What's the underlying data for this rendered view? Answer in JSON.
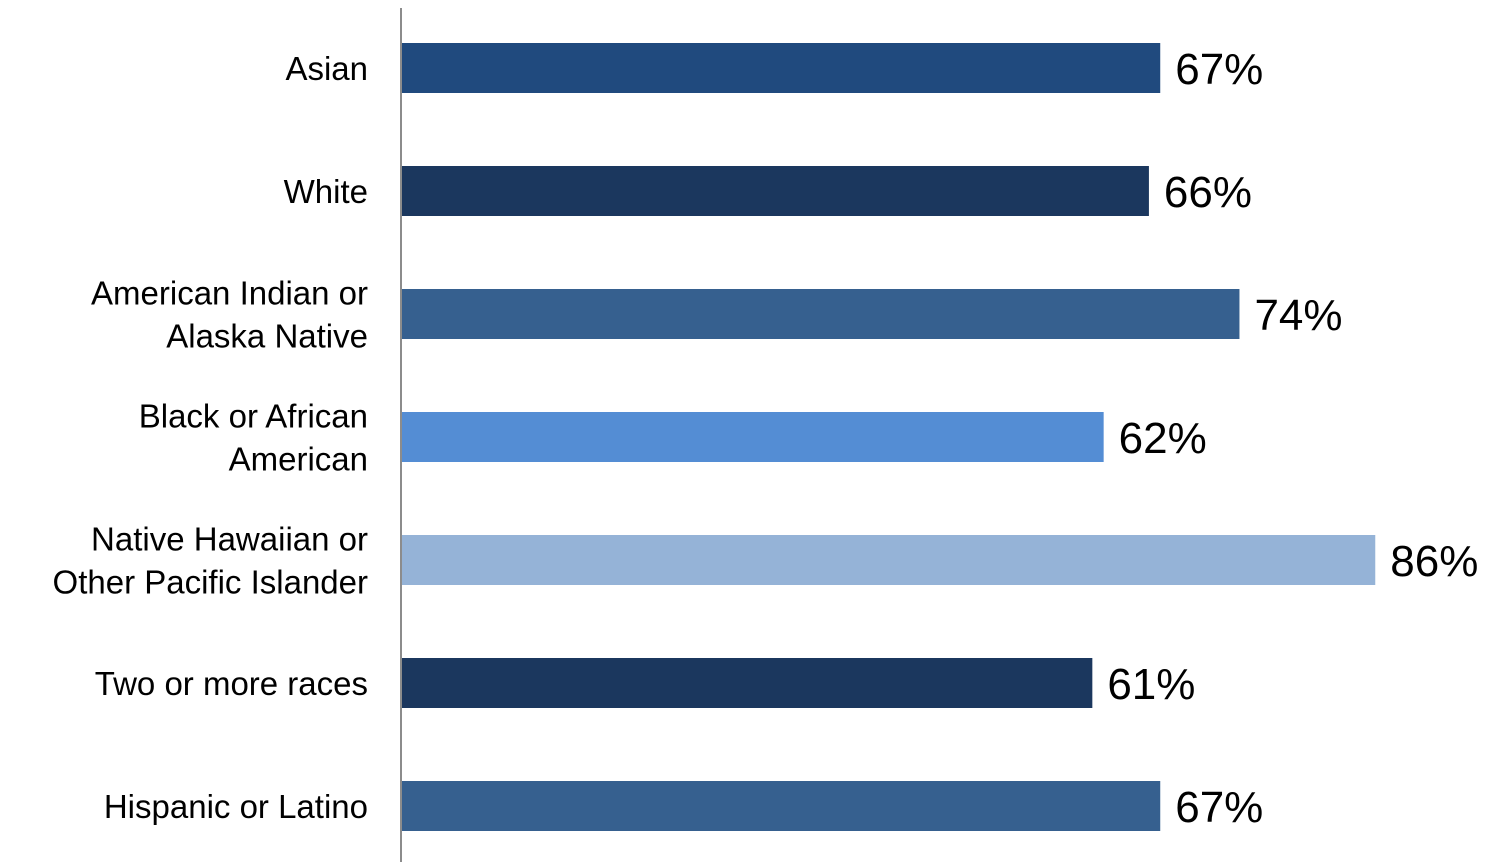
{
  "chart_data": {
    "type": "bar",
    "orientation": "horizontal",
    "categories": [
      "Asian",
      "White",
      "American Indian or Alaska Native",
      "Black or African American",
      "Native Hawaiian or Other Pacific Islander",
      "Two or more races",
      "Hispanic or Latino"
    ],
    "category_label_lines": [
      [
        "Asian"
      ],
      [
        "White"
      ],
      [
        "American Indian or",
        "Alaska Native"
      ],
      [
        "Black or African",
        "American"
      ],
      [
        "Native Hawaiian or",
        "Other Pacific Islander"
      ],
      [
        "Two or more races"
      ],
      [
        "Hispanic or Latino"
      ]
    ],
    "values": [
      67,
      66,
      74,
      62,
      86,
      61,
      67
    ],
    "value_labels": [
      "67%",
      "66%",
      "74%",
      "62%",
      "86%",
      "61%",
      "67%"
    ],
    "bar_colors": [
      "#204a7e",
      "#1b375e",
      "#36608f",
      "#548dd4",
      "#95b3d7",
      "#1b375e",
      "#36608f"
    ],
    "xlim": [
      0,
      100
    ],
    "grid": false,
    "title": "",
    "xlabel": "",
    "ylabel": ""
  }
}
